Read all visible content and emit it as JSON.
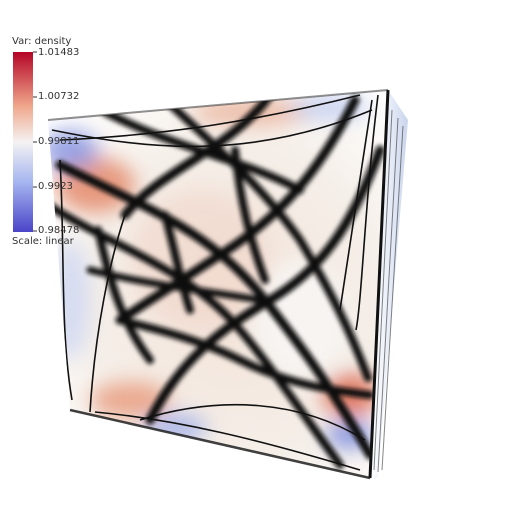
{
  "legend": {
    "var_label": "Var: density",
    "scale_label": "Scale: linear",
    "ticks": [
      "1.01483",
      "1.00732",
      "0.99811",
      "0.9923",
      "0.98478"
    ],
    "colormap": [
      "#b40426",
      "#f0a78c",
      "#f1f1f1",
      "#a6b6f0",
      "#4a44c8"
    ]
  },
  "scene": {
    "object": "cube",
    "line_color": "#111111",
    "background": "#ffffff"
  }
}
